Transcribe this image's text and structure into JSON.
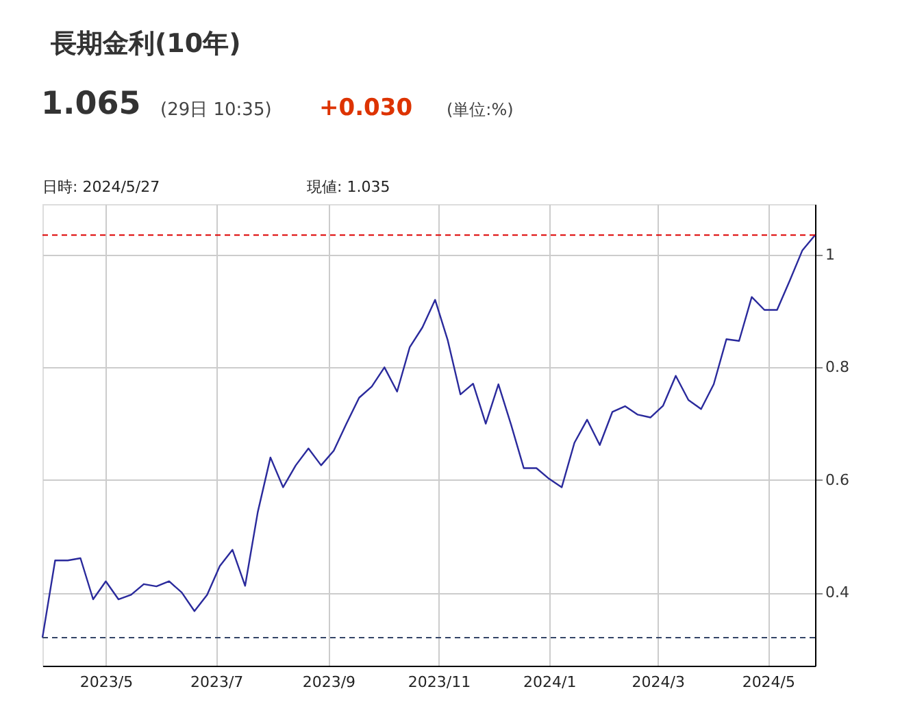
{
  "chart_data": {
    "type": "line",
    "title": "長期金利(10年)",
    "annotations": [
      "1.065",
      "(29日 10:35)",
      "+0.030",
      "(単位:%)",
      "日時: 2024/5/27",
      "現値: 1.035"
    ],
    "x": [
      "2023-03-27",
      "2023-04-03",
      "2023-04-10",
      "2023-04-17",
      "2023-04-24",
      "2023-05-01",
      "2023-05-08",
      "2023-05-15",
      "2023-05-22",
      "2023-05-29",
      "2023-06-05",
      "2023-06-12",
      "2023-06-19",
      "2023-06-26",
      "2023-07-03",
      "2023-07-10",
      "2023-07-17",
      "2023-07-24",
      "2023-07-31",
      "2023-08-07",
      "2023-08-14",
      "2023-08-21",
      "2023-08-28",
      "2023-09-04",
      "2023-09-11",
      "2023-09-18",
      "2023-09-25",
      "2023-10-02",
      "2023-10-09",
      "2023-10-16",
      "2023-10-23",
      "2023-10-30",
      "2023-11-06",
      "2023-11-13",
      "2023-11-20",
      "2023-11-27",
      "2023-12-04",
      "2023-12-11",
      "2023-12-18",
      "2023-12-25",
      "2024-01-01",
      "2024-01-08",
      "2024-01-15",
      "2024-01-22",
      "2024-01-29",
      "2024-02-05",
      "2024-02-12",
      "2024-02-19",
      "2024-02-26",
      "2024-03-04",
      "2024-03-11",
      "2024-03-18",
      "2024-03-25",
      "2024-04-01",
      "2024-04-08",
      "2024-04-15",
      "2024-04-22",
      "2024-04-29",
      "2024-05-06",
      "2024-05-13",
      "2024-05-20",
      "2024-05-27"
    ],
    "series": [
      {
        "color": "#2a2a9c",
        "values": [
          0.32,
          0.457,
          0.457,
          0.461,
          0.388,
          0.42,
          0.388,
          0.396,
          0.415,
          0.411,
          0.42,
          0.4,
          0.367,
          0.396,
          0.447,
          0.476,
          0.412,
          0.543,
          0.64,
          0.587,
          0.626,
          0.656,
          0.626,
          0.652,
          0.7,
          0.746,
          0.766,
          0.8,
          0.757,
          0.836,
          0.871,
          0.92,
          0.848,
          0.752,
          0.771,
          0.7,
          0.77,
          0.698,
          0.621,
          0.621,
          0.602,
          0.587,
          0.666,
          0.707,
          0.662,
          0.721,
          0.731,
          0.716,
          0.711,
          0.732,
          0.785,
          0.742,
          0.726,
          0.77,
          0.85,
          0.847,
          0.925,
          0.902,
          0.902,
          0.954,
          1.008,
          1.035
        ]
      }
    ],
    "xlim": [
      "2023-03-27",
      "2024-05-27"
    ],
    "xticks": [
      {
        "value": "2023-05-01",
        "label": "2023/5"
      },
      {
        "value": "2023-07-01",
        "label": "2023/7"
      },
      {
        "value": "2023-09-01",
        "label": "2023/9"
      },
      {
        "value": "2023-11-01",
        "label": "2023/11"
      },
      {
        "value": "2024-01-01",
        "label": "2024/1"
      },
      {
        "value": "2024-03-01",
        "label": "2024/3"
      },
      {
        "value": "2024-05-01",
        "label": "2024/5"
      }
    ],
    "ylim": [
      0.27,
      1.09
    ],
    "yticks": [
      0.4,
      0.6,
      0.8,
      1
    ],
    "ref_lines": [
      {
        "axis": "y",
        "value": 1.035,
        "label": null,
        "color": "#dd0000",
        "line_style": "dashed"
      },
      {
        "axis": "y",
        "value": 0.32,
        "label": null,
        "color": "#334466",
        "line_style": "dashed"
      }
    ],
    "grid": true,
    "marker": "none",
    "line_style": "solid"
  }
}
